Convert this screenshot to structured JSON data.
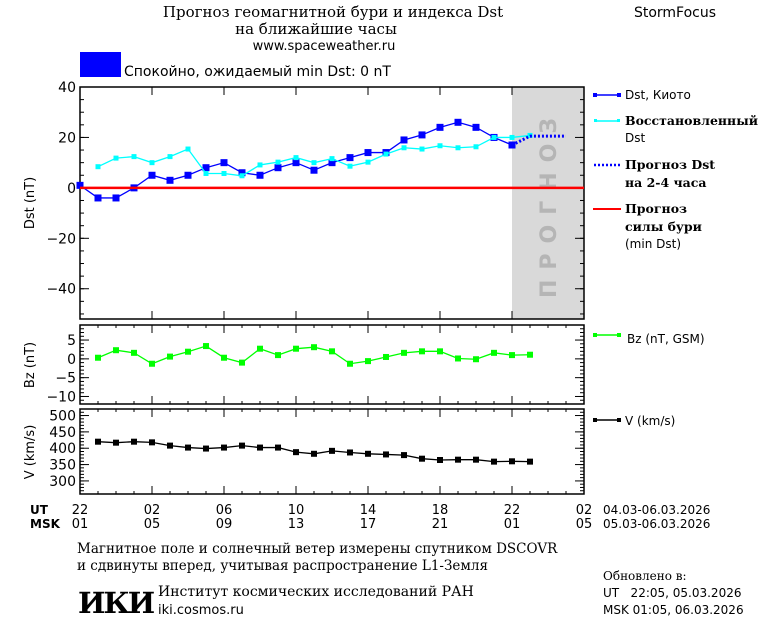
{
  "header": {
    "title_line1": "Прогноз геомагнитной бури и индекса Dst",
    "title_line2": "на ближайшие часы",
    "website": "www.spaceweather.ru",
    "brand": "StormFocus",
    "status_text": "Спокойно, ожидаемый min Dst: 0 nT",
    "status_color": "#0000ff"
  },
  "forecast_region_label": "ПРОГНОЗ",
  "legend": {
    "dst_kyoto": "Dst, Киото",
    "recovered_1": "Восстановленный",
    "recovered_2": "Dst",
    "forecast_1": "Прогноз Dst",
    "forecast_2": "на 2-4 часа",
    "storm_1": "Прогноз",
    "storm_2": "силы бури",
    "storm_3": "(min Dst)",
    "bz": "Bz (nT, GSM)",
    "v": "V (km/s)"
  },
  "time_axis": {
    "ut_label": "UT",
    "msk_label": "MSK",
    "ut_ticks": [
      "22",
      "02",
      "06",
      "10",
      "14",
      "18",
      "22",
      "02"
    ],
    "msk_ticks": [
      "01",
      "05",
      "09",
      "13",
      "17",
      "21",
      "01",
      "05"
    ],
    "ut_range": "04.03-06.03.2026",
    "msk_range": "05.03-06.03.2026"
  },
  "footer": {
    "note_1": "Магнитное поле и солнечный ветер измерены спутником DSCOVR",
    "note_2": "и сдвинуты вперед, учитывая распространение L1-Земля",
    "logo": "ИКИ",
    "institute": "Институт космических исследований РАН",
    "institute_url": "iki.cosmos.ru",
    "updated_label": "Обновлено в:",
    "updated_ut": "UT   22:05, 05.03.2026",
    "updated_msk": "MSK 01:05, 06.03.2026"
  },
  "chart_data": [
    {
      "type": "line",
      "ylabel": "Dst (nT)",
      "ylim": [
        -52,
        40
      ],
      "yticks": [
        40,
        20,
        0,
        -20,
        -40
      ],
      "x_hours_from_22UT": [
        0,
        1,
        2,
        3,
        4,
        5,
        6,
        7,
        8,
        9,
        10,
        11,
        12,
        13,
        14,
        15,
        16,
        17,
        18,
        19,
        20,
        21,
        22,
        23,
        24,
        25,
        26,
        27,
        28
      ],
      "forecast_region_hours": [
        24,
        28
      ],
      "series": [
        {
          "name": "Dst, Киото",
          "color": "#0000ff",
          "start": 0,
          "values": [
            1,
            -4,
            -4,
            0,
            5,
            3,
            5,
            8,
            10,
            6,
            5,
            8,
            10,
            7,
            10,
            12,
            14,
            14,
            19,
            21,
            24,
            26,
            24,
            20,
            17
          ]
        },
        {
          "name": "Восстановленный Dst",
          "color": "#00ffff",
          "start": 1,
          "values": [
            8.4,
            11.8,
            12.4,
            10,
            12.4,
            15.4,
            5.7,
            5.7,
            4.8,
            9.1,
            10.2,
            12,
            10,
            11.6,
            8.6,
            10.2,
            13.4,
            15.9,
            15.4,
            16.7,
            15.9,
            16.3,
            20,
            20,
            20.8
          ]
        },
        {
          "name": "Прогноз Dst на 2-4 часа",
          "color": "#0000ff",
          "style": "dotted",
          "start": 24,
          "values": [
            17,
            20.5,
            20.5,
            20.5
          ]
        },
        {
          "name": "Прогноз силы бури (min Dst)",
          "color": "#ff0000",
          "start": 0,
          "values": [
            0,
            0
          ],
          "span_hours": [
            0,
            28
          ]
        }
      ]
    },
    {
      "type": "line",
      "ylabel": "Bz (nT)",
      "ylim": [
        -12,
        9
      ],
      "yticks": [
        5,
        0,
        -5,
        -10
      ],
      "series": [
        {
          "name": "Bz (nT, GSM)",
          "color": "#00ff00",
          "start": 1,
          "values": [
            0.3,
            2.3,
            1.6,
            -1.3,
            0.6,
            1.9,
            3.4,
            0.3,
            -1,
            2.7,
            1,
            2.7,
            3.1,
            2,
            -1.3,
            -0.6,
            0.5,
            1.6,
            2,
            2,
            0.1,
            -0.1,
            1.6,
            1,
            1.1
          ]
        }
      ]
    },
    {
      "type": "line",
      "ylabel": "V (km/s)",
      "ylim": [
        260,
        520
      ],
      "yticks": [
        500,
        450,
        400,
        350,
        300
      ],
      "series": [
        {
          "name": "V (km/s)",
          "color": "#000000",
          "start": 1,
          "values": [
            420,
            417,
            420,
            418,
            408,
            402,
            399,
            402,
            408,
            402,
            402,
            388,
            383,
            392,
            387,
            383,
            381,
            379,
            368,
            364,
            365,
            365,
            359,
            360,
            359
          ]
        }
      ]
    }
  ]
}
